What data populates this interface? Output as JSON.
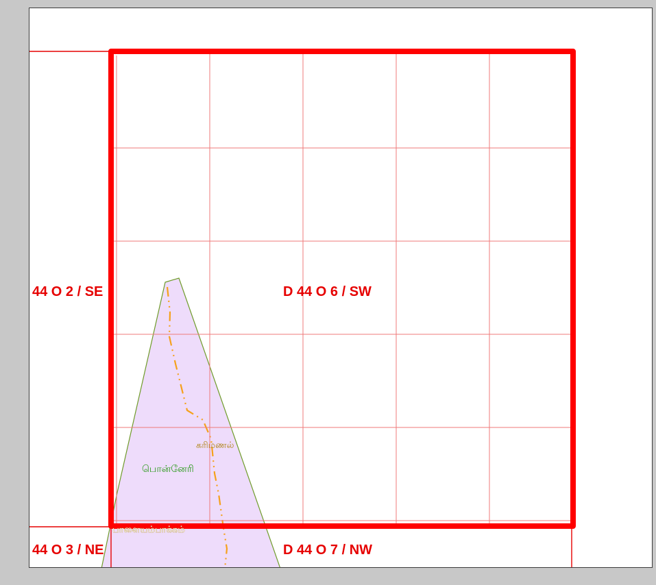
{
  "map": {
    "sheet_labels": {
      "current": "D 44 O 6 / SW",
      "west": "44 O 2 / SE",
      "southwest": "44 O 3 / NE",
      "south": "D 44 O 7 / NW"
    },
    "place_names": {
      "karimanal": "கரிமணல்",
      "ponneri": "பொன்னேரி",
      "palayampakkam": "பாளையம்பாக்கம்"
    },
    "colors": {
      "sheet_border": "#ff0000",
      "grid_line": "#ef7a7a",
      "boundary_fill": "#eedcfb",
      "boundary_edge": "#6f9b2a",
      "road": "#f5a11c",
      "town_label": "#2a9a1a",
      "village_label": "#b0861a",
      "viewer_background": "#c8c8c8"
    }
  }
}
